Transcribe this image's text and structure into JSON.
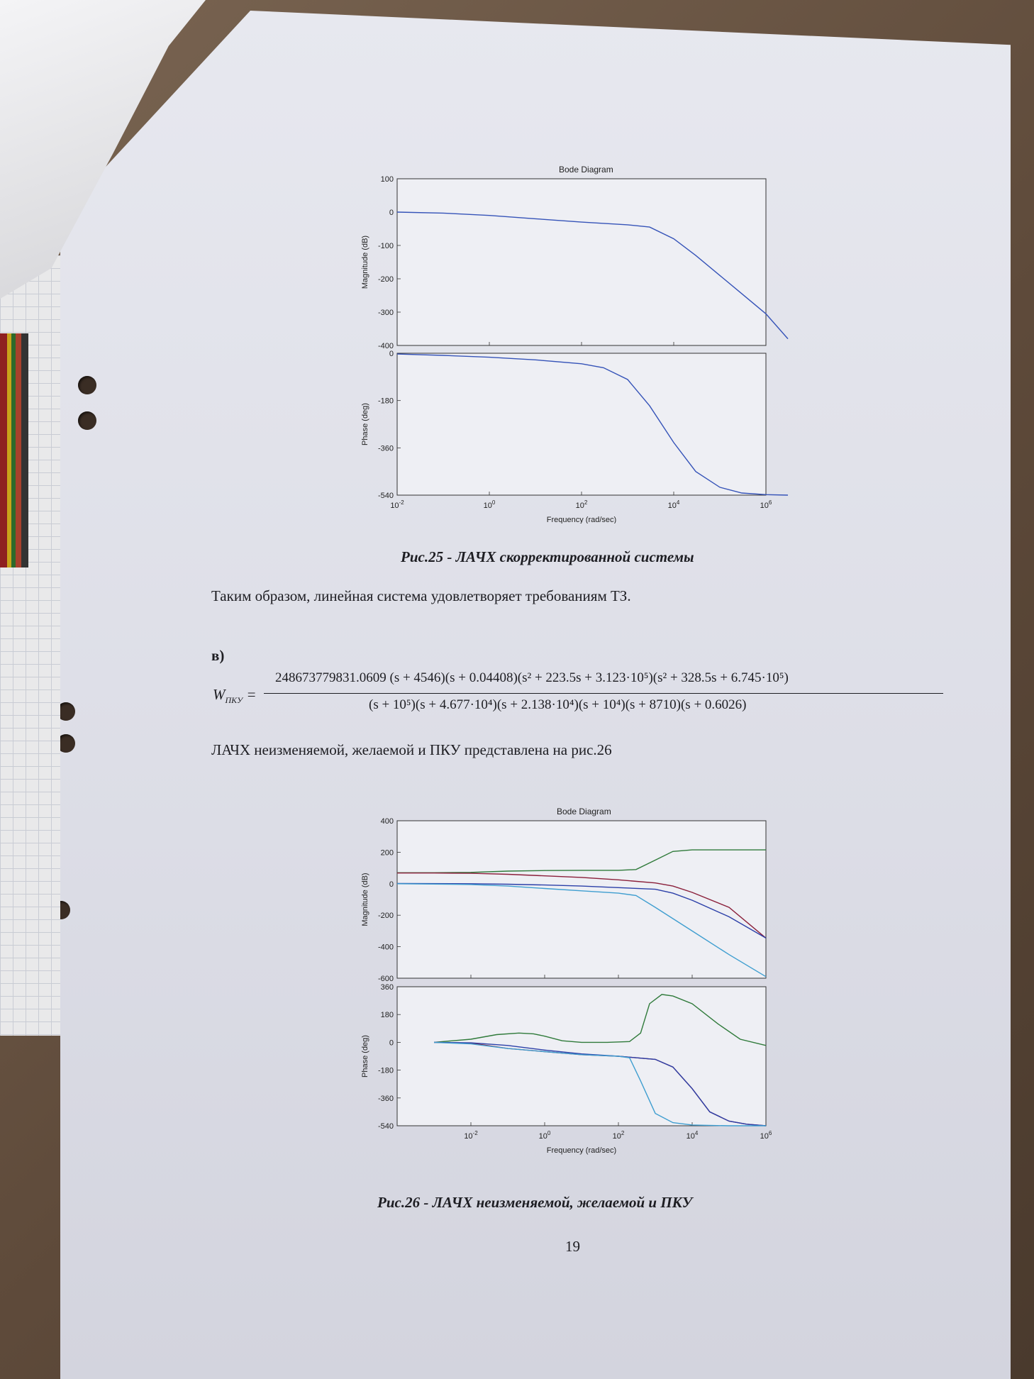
{
  "figure25": {
    "title": "Bode Diagram",
    "magnitude_ylabel": "Magnitude (dB)",
    "phase_ylabel": "Phase (deg)",
    "xlabel": "Frequency  (rad/sec)",
    "caption": "Рис.25 - ЛАЧХ скорректированной системы"
  },
  "paragraph1": "Таким образом, линейная система удовлетворяет требованиям ТЗ.",
  "section_label": "в)",
  "formula": {
    "lhs": "W",
    "lhs_sub": "ПКУ",
    "equals": "=",
    "numerator": "248673779831.0609  (s + 4546)(s + 0.04408)(s² + 223.5s + 3.123·10⁵)(s² + 328.5s + 6.745·10⁵)",
    "denominator": "(s + 10⁵)(s + 4.677·10⁴)(s + 2.138·10⁴)(s + 10⁴)(s + 8710)(s + 0.6026)"
  },
  "paragraph2": "ЛАЧХ неизменяемой, желаемой и ПКУ представлена на рис.26",
  "figure26": {
    "title": "Bode Diagram",
    "magnitude_ylabel": "Magnitude (dB)",
    "phase_ylabel": "Phase (deg)",
    "xlabel": "Frequency  (rad/sec)",
    "caption": "Рис.26 - ЛАЧХ неизменяемой, желаемой и ПКУ"
  },
  "page_number": "19",
  "chart_data": [
    {
      "type": "line",
      "title": "Bode Diagram",
      "subplot": "magnitude",
      "xlabel": "Frequency  (rad/sec)",
      "ylabel": "Magnitude (dB)",
      "x_scale": "log",
      "xlim": [
        0.01,
        1000000
      ],
      "ylim": [
        -400,
        100
      ],
      "yticks": [
        100,
        0,
        -100,
        -200,
        -300,
        -400
      ],
      "xticks": [
        "10^-2",
        "10^0",
        "10^2",
        "10^4",
        "10^6"
      ],
      "series": [
        {
          "color": "#3553b8",
          "x": [
            0.01,
            0.1,
            1,
            10,
            100,
            1000,
            3000,
            10000,
            30000,
            100000,
            300000,
            1000000,
            3000000
          ],
          "y": [
            0,
            -3,
            -10,
            -20,
            -30,
            -38,
            -45,
            -80,
            -130,
            -190,
            -245,
            -305,
            -380
          ]
        }
      ]
    },
    {
      "type": "line",
      "title": "",
      "subplot": "phase",
      "xlabel": "Frequency  (rad/sec)",
      "ylabel": "Phase (deg)",
      "x_scale": "log",
      "xlim": [
        0.01,
        1000000
      ],
      "ylim": [
        -540,
        0
      ],
      "yticks": [
        0,
        -180,
        -360,
        -540
      ],
      "xticks": [
        "10^-2",
        "10^0",
        "10^2",
        "10^4",
        "10^6"
      ],
      "series": [
        {
          "color": "#3553b8",
          "x": [
            0.01,
            0.1,
            1,
            10,
            100,
            300,
            1000,
            3000,
            10000,
            30000,
            100000,
            300000,
            1000000,
            3000000
          ],
          "y": [
            -3,
            -8,
            -15,
            -25,
            -40,
            -55,
            -100,
            -200,
            -340,
            -450,
            -510,
            -532,
            -538,
            -540
          ]
        }
      ]
    },
    {
      "type": "line",
      "title": "Bode Diagram",
      "subplot": "magnitude",
      "xlabel": "Frequency  (rad/sec)",
      "ylabel": "Magnitude (dB)",
      "x_scale": "log",
      "xlim": [
        0.0001,
        1000000
      ],
      "ylim": [
        -600,
        400
      ],
      "yticks": [
        400,
        200,
        0,
        -200,
        -400,
        -600
      ],
      "xticks": [
        "10^-2",
        "10^0",
        "10^2",
        "10^4",
        "10^6"
      ],
      "series": [
        {
          "color": "#2f7a3a",
          "x": [
            0.0001,
            0.001,
            0.01,
            0.1,
            1,
            10,
            100,
            300,
            1000,
            3000,
            10000,
            100000,
            1000000
          ],
          "y": [
            70,
            70,
            72,
            80,
            84,
            85,
            85,
            90,
            150,
            205,
            215,
            215,
            215
          ]
        },
        {
          "color": "#8a1f3a",
          "x": [
            0.0001,
            0.001,
            0.01,
            0.1,
            1,
            10,
            100,
            1000,
            3000,
            10000,
            100000,
            1000000
          ],
          "y": [
            68,
            68,
            66,
            60,
            50,
            40,
            25,
            5,
            -15,
            -55,
            -150,
            -345
          ]
        },
        {
          "color": "#2b3fa8",
          "x": [
            0.0001,
            0.01,
            0.1,
            1,
            10,
            100,
            1000,
            3000,
            10000,
            100000,
            1000000
          ],
          "y": [
            2,
            0,
            -3,
            -8,
            -15,
            -25,
            -35,
            -60,
            -105,
            -210,
            -345
          ]
        },
        {
          "color": "#3f9ed0",
          "x": [
            0.0001,
            0.01,
            0.1,
            1,
            10,
            100,
            300,
            1000,
            10000,
            100000,
            1000000
          ],
          "y": [
            0,
            -5,
            -15,
            -30,
            -45,
            -60,
            -75,
            -150,
            -300,
            -450,
            -590
          ]
        }
      ]
    },
    {
      "type": "line",
      "title": "",
      "subplot": "phase",
      "xlabel": "Frequency  (rad/sec)",
      "ylabel": "Phase (deg)",
      "x_scale": "log",
      "xlim": [
        0.0001,
        1000000
      ],
      "ylim": [
        -540,
        360
      ],
      "yticks": [
        360,
        180,
        0,
        -180,
        -360,
        -540
      ],
      "xticks": [
        "10^-2",
        "10^0",
        "10^2",
        "10^4",
        "10^6"
      ],
      "series": [
        {
          "color": "#2f7a3a",
          "x": [
            0.001,
            0.01,
            0.05,
            0.2,
            0.5,
            1,
            3,
            10,
            50,
            200,
            400,
            700,
            1500,
            3000,
            10000,
            50000,
            200000,
            1000000
          ],
          "y": [
            0,
            20,
            50,
            60,
            55,
            40,
            10,
            0,
            0,
            5,
            60,
            250,
            310,
            300,
            250,
            120,
            20,
            -20
          ]
        },
        {
          "color": "#8a1f3a",
          "x": [
            0.001,
            0.01,
            0.1,
            1,
            10,
            100,
            1000,
            3000,
            10000,
            30000,
            100000,
            300000,
            1000000
          ],
          "y": [
            0,
            -5,
            -40,
            -60,
            -80,
            -90,
            -110,
            -160,
            -300,
            -450,
            -510,
            -530,
            -540
          ]
        },
        {
          "color": "#2b3fa8",
          "x": [
            0.001,
            0.01,
            0.1,
            1,
            10,
            100,
            1000,
            3000,
            10000,
            30000,
            100000,
            300000,
            1000000
          ],
          "y": [
            0,
            -3,
            -20,
            -50,
            -75,
            -90,
            -110,
            -160,
            -300,
            -450,
            -510,
            -530,
            -540
          ]
        },
        {
          "color": "#3f9ed0",
          "x": [
            0.001,
            0.01,
            0.1,
            1,
            10,
            100,
            200,
            400,
            1000,
            3000,
            10000,
            100000,
            1000000
          ],
          "y": [
            0,
            -10,
            -40,
            -60,
            -80,
            -90,
            -100,
            -250,
            -460,
            -520,
            -535,
            -540,
            -540
          ]
        }
      ]
    }
  ]
}
